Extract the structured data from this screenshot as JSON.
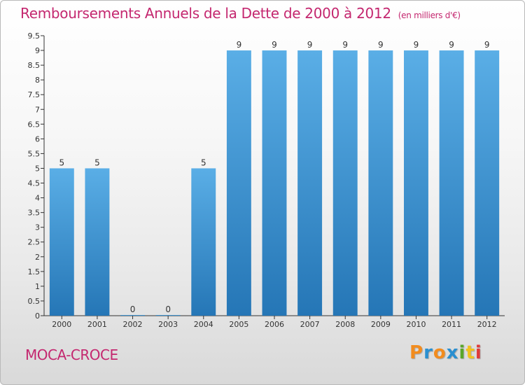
{
  "header": {
    "title": "Remboursements Annuels de la Dette de 2000 à 2012",
    "unit": "(en milliers d'€)"
  },
  "footer": {
    "commune": "MOCA-CROCE",
    "logo_text": "Proxiti",
    "logo_colors": [
      "#f28c1e",
      "#2a8fd0",
      "#f28c1e",
      "#2a8fd0",
      "#5aa62a",
      "#f2c21e",
      "#e03a3a"
    ]
  },
  "chart_data": {
    "type": "bar",
    "categories": [
      "2000",
      "2001",
      "2002",
      "2003",
      "2004",
      "2005",
      "2006",
      "2007",
      "2008",
      "2009",
      "2010",
      "2011",
      "2012"
    ],
    "values": [
      5,
      5,
      0,
      0,
      5,
      9,
      9,
      9,
      9,
      9,
      9,
      9,
      9
    ],
    "data_labels": [
      "5",
      "5",
      "0",
      "0",
      "5",
      "9",
      "9",
      "9",
      "9",
      "9",
      "9",
      "9",
      "9"
    ],
    "title": "Remboursements Annuels de la Dette de 2000 à 2012",
    "xlabel": "",
    "ylabel": "",
    "ylim": [
      0,
      9.5
    ],
    "yticks": [
      0,
      0.5,
      1,
      1.5,
      2,
      2.5,
      3,
      3.5,
      4,
      4.5,
      5,
      5.5,
      6,
      6.5,
      7,
      7.5,
      8,
      8.5,
      9,
      9.5
    ],
    "ytick_labels": [
      "0",
      "0.5",
      "1",
      "1.5",
      "2",
      "2.5",
      "3",
      "3.5",
      "4",
      "4.5",
      "5",
      "5.5",
      "6",
      "6.5",
      "7",
      "7.5",
      "8",
      "8.5",
      "9",
      "9.5"
    ],
    "grid": false,
    "colors": {
      "bar_top": "#5aaee6",
      "bar_bottom": "#2576b6",
      "axis": "#333333"
    }
  }
}
